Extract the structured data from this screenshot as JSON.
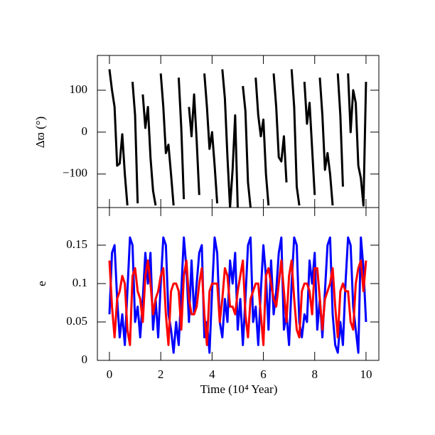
{
  "chart_data": [
    {
      "type": "line",
      "y_label": "Δϖ (°)",
      "x": [
        0,
        0.1,
        0.2,
        0.3,
        0.4,
        0.5,
        0.6,
        0.7,
        0.8,
        0.9,
        1,
        1.1,
        1.2,
        1.3,
        1.4,
        1.5,
        1.6,
        1.7,
        1.8,
        1.9,
        2,
        2.1,
        2.2,
        2.3,
        2.4,
        2.5,
        2.6,
        2.7,
        2.8,
        2.9,
        3,
        3.1,
        3.2,
        3.3,
        3.4,
        3.5,
        3.6,
        3.7,
        3.8,
        3.9,
        4,
        4.1,
        4.2,
        4.3,
        4.4,
        4.5,
        4.6,
        4.7,
        4.8,
        4.9,
        5,
        5.1,
        5.2,
        5.3,
        5.4,
        5.5,
        5.6,
        5.7,
        5.8,
        5.9,
        6,
        6.1,
        6.2,
        6.3,
        6.4,
        6.5,
        6.6,
        6.7,
        6.8,
        6.9,
        7,
        7.1,
        7.2,
        7.3,
        7.4,
        7.5,
        7.6,
        7.7,
        7.8,
        7.9,
        8,
        8.1,
        8.2,
        8.3,
        8.4,
        8.5,
        8.6,
        8.7,
        8.8,
        8.9,
        9,
        9.1,
        9.2,
        9.3,
        9.4,
        9.5,
        9.6,
        9.7,
        9.8,
        9.9,
        10
      ],
      "series": [
        {
          "color": "#000000",
          "values": [
            150,
            100,
            60,
            -80,
            -75,
            -5,
            -100,
            -175,
            null,
            120,
            40,
            -170,
            null,
            90,
            10,
            60,
            -60,
            -140,
            -175,
            null,
            140,
            60,
            -50,
            -30,
            -100,
            -175,
            null,
            130,
            10,
            -160,
            null,
            60,
            -10,
            90,
            -20,
            -150,
            null,
            140,
            60,
            -40,
            0,
            -80,
            -170,
            null,
            150,
            80,
            -60,
            -180,
            -90,
            40,
            -180,
            null,
            110,
            50,
            -120,
            -180,
            null,
            130,
            40,
            -10,
            30,
            -100,
            -175,
            null,
            140,
            60,
            -60,
            -70,
            -10,
            -120,
            null,
            150,
            60,
            -130,
            -175,
            null,
            120,
            20,
            70,
            -40,
            -150,
            null,
            130,
            40,
            -90,
            -50,
            -100,
            -175,
            null,
            140,
            40,
            -130,
            null,
            140,
            0,
            100,
            70,
            -80,
            -110,
            -175,
            120
          ]
        }
      ],
      "xlim": [
        -0.47,
        10.5
      ],
      "ylim": [
        -180,
        183
      ],
      "yticks": [
        {
          "value": -100,
          "label": "−100"
        },
        0,
        100
      ]
    },
    {
      "type": "line",
      "x_label": "Time (10⁴ Year)",
      "y_label": "e",
      "x": [
        0,
        0.1,
        0.2,
        0.3,
        0.4,
        0.5,
        0.6,
        0.7,
        0.8,
        0.9,
        1,
        1.1,
        1.2,
        1.3,
        1.4,
        1.5,
        1.6,
        1.7,
        1.8,
        1.9,
        2,
        2.1,
        2.2,
        2.3,
        2.4,
        2.5,
        2.6,
        2.7,
        2.8,
        2.9,
        3,
        3.1,
        3.2,
        3.3,
        3.4,
        3.5,
        3.6,
        3.7,
        3.8,
        3.9,
        4,
        4.1,
        4.2,
        4.3,
        4.4,
        4.5,
        4.6,
        4.7,
        4.8,
        4.9,
        5,
        5.1,
        5.2,
        5.3,
        5.4,
        5.5,
        5.6,
        5.7,
        5.8,
        5.9,
        6,
        6.1,
        6.2,
        6.3,
        6.4,
        6.5,
        6.6,
        6.7,
        6.8,
        6.9,
        7,
        7.1,
        7.2,
        7.3,
        7.4,
        7.5,
        7.6,
        7.7,
        7.8,
        7.9,
        8,
        8.1,
        8.2,
        8.3,
        8.4,
        8.5,
        8.6,
        8.7,
        8.8,
        8.9,
        9,
        9.1,
        9.2,
        9.3,
        9.4,
        9.5,
        9.6,
        9.7,
        9.8,
        9.9,
        10
      ],
      "series": [
        {
          "color": "#0000ff",
          "values": [
            0.06,
            0.14,
            0.15,
            0.08,
            0.03,
            0.06,
            0.02,
            0.09,
            0.16,
            0.15,
            0.05,
            0.07,
            0.03,
            0.08,
            0.14,
            0.1,
            0.14,
            0.04,
            0.08,
            0.03,
            0.1,
            0.16,
            0.15,
            0.06,
            0.04,
            0.01,
            0.05,
            0.02,
            0.09,
            0.16,
            0.12,
            0.05,
            0.13,
            0.06,
            0.1,
            0.14,
            0.15,
            0.03,
            0.05,
            0.01,
            0.09,
            0.16,
            0.14,
            0.05,
            0.03,
            0.08,
            0.05,
            0.13,
            0.1,
            0.14,
            0.04,
            0.08,
            0.02,
            0.08,
            0.15,
            0.16,
            0.05,
            0.07,
            0.02,
            0.09,
            0.15,
            0.11,
            0.04,
            0.13,
            0.06,
            0.09,
            0.14,
            0.16,
            0.04,
            0.06,
            0.02,
            0.1,
            0.16,
            0.15,
            0.05,
            0.03,
            0.06,
            0.05,
            0.13,
            0.1,
            0.14,
            0.04,
            0.08,
            0.03,
            0.09,
            0.15,
            0.16,
            0.06,
            0.02,
            0.01,
            0.05,
            0.02,
            0.1,
            0.16,
            0.15,
            0.07,
            0.04,
            0.01,
            0.16,
            0.12,
            0.05
          ]
        },
        {
          "color": "#ff0000",
          "values": [
            0.13,
            0.07,
            0.03,
            0.08,
            0.09,
            0.11,
            0.1,
            0.04,
            0.02,
            0.11,
            0.12,
            0.09,
            0.08,
            0.05,
            0.11,
            0.13,
            0.1,
            0.06,
            0.08,
            0.09,
            0.11,
            0.12,
            0.06,
            0.02,
            0.09,
            0.1,
            0.1,
            0.09,
            0.04,
            0.11,
            0.13,
            0.08,
            0.06,
            0.06,
            0.07,
            0.1,
            0.12,
            0.06,
            0.02,
            0.09,
            0.1,
            0.1,
            0.1,
            0.05,
            0.08,
            0.12,
            0.11,
            0.07,
            0.07,
            0.06,
            0.09,
            0.11,
            0.13,
            0.06,
            0.03,
            0.08,
            0.09,
            0.1,
            0.1,
            0.06,
            0.02,
            0.11,
            0.12,
            0.1,
            0.08,
            0.07,
            0.1,
            0.13,
            0.09,
            0.05,
            0.11,
            0.13,
            0.08,
            0.04,
            0.03,
            0.09,
            0.1,
            0.1,
            0.09,
            0.06,
            0.12,
            0.12,
            0.08,
            0.04,
            0.08,
            0.09,
            0.1,
            0.12,
            0.07,
            0.03,
            0.09,
            0.1,
            0.09,
            0.09,
            0.05,
            0.04,
            0.1,
            0.12,
            0.13,
            0.09,
            0.13
          ]
        }
      ],
      "xlim": [
        -0.47,
        10.5
      ],
      "xticks": [
        0,
        2,
        4,
        6,
        8,
        10
      ],
      "ylim": [
        0,
        0.199
      ],
      "yticks": [
        0,
        0.05,
        0.1,
        0.15
      ]
    }
  ]
}
